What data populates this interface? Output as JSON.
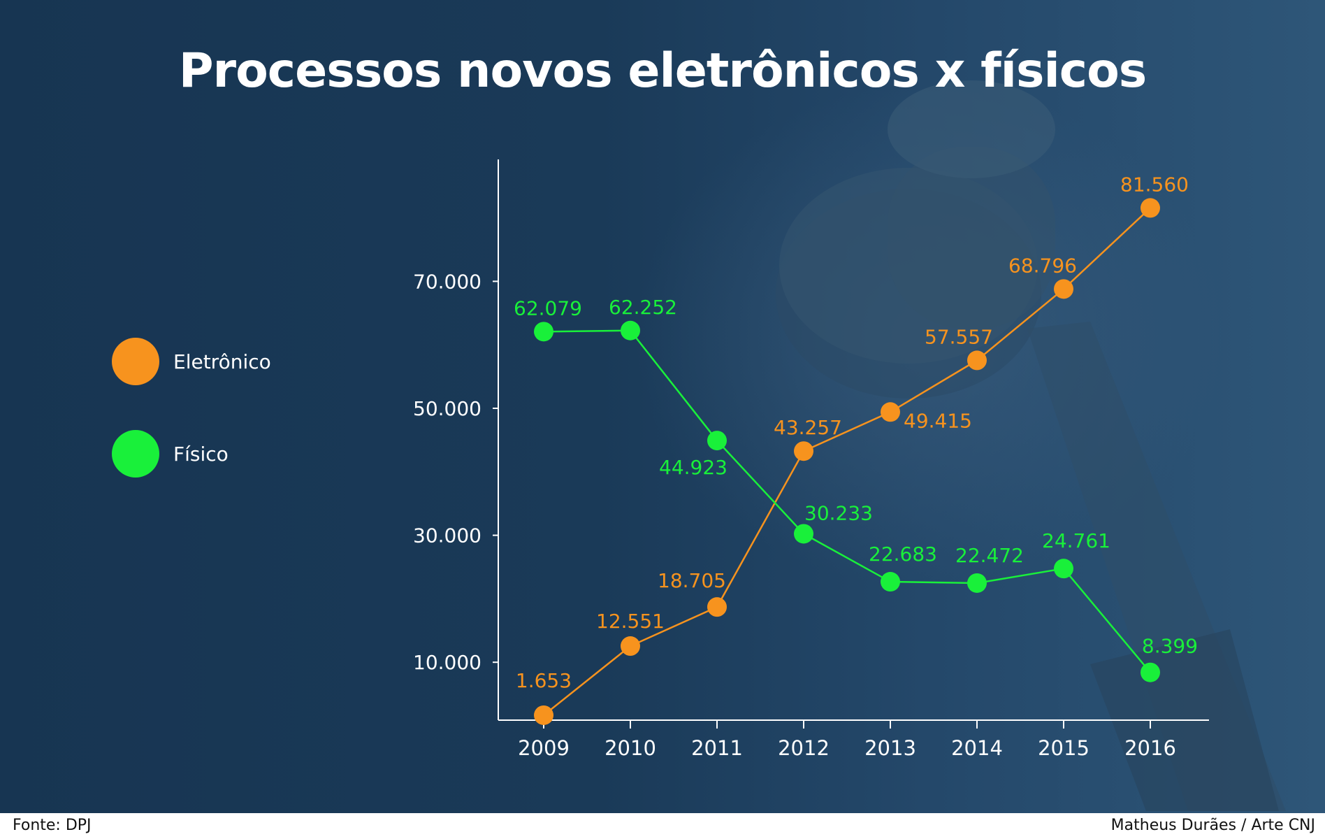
{
  "title": "Processos novos eletrônicos x físicos",
  "legend": [
    {
      "label": "Eletrônico",
      "color": "#f7931e"
    },
    {
      "label": "Físico",
      "color": "#19f03a"
    }
  ],
  "footer": {
    "source": "Fonte: DPJ",
    "credit": "Matheus Durães / Arte CNJ"
  },
  "chart_data": {
    "type": "line",
    "title": "Processos novos eletrônicos x físicos",
    "xlabel": "",
    "ylabel": "",
    "categories": [
      "2009",
      "2010",
      "2011",
      "2012",
      "2013",
      "2014",
      "2015",
      "2016"
    ],
    "yticks": [
      "10.000",
      "30.000",
      "50.000",
      "70.000"
    ],
    "ytick_values": [
      10000,
      30000,
      50000,
      70000
    ],
    "ylim": [
      0,
      89000
    ],
    "grid": false,
    "legend_position": "left",
    "series": [
      {
        "name": "Eletrônico",
        "color": "#f7931e",
        "values": [
          1653,
          12551,
          18705,
          43257,
          49415,
          57557,
          68796,
          81560
        ],
        "labels": [
          "1.653",
          "12.551",
          "18.705",
          "43.257",
          "49.415",
          "57.557",
          "68.796",
          "81.560"
        ]
      },
      {
        "name": "Físico",
        "color": "#19f03a",
        "values": [
          62079,
          62252,
          44923,
          30233,
          22683,
          22472,
          24761,
          8399
        ],
        "labels": [
          "62.079",
          "62.252",
          "44.923",
          "30.233",
          "22.683",
          "22.472",
          "24.761",
          "8.399"
        ]
      }
    ]
  }
}
